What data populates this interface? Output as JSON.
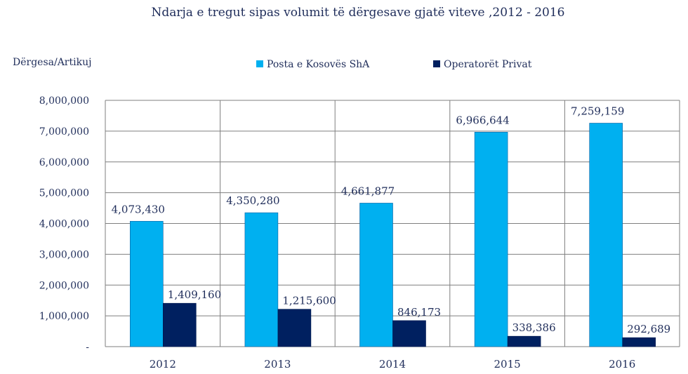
{
  "chart_data": {
    "type": "bar",
    "title": "Ndarja e tregut sipas volumit të dërgesave gjatë viteve ,2012 - 2016",
    "xlabel": "",
    "ylabel": "Dërgesa/Artikuj",
    "categories": [
      "2012",
      "2013",
      "2014",
      "2015",
      "2016"
    ],
    "series": [
      {
        "name": "Posta e Kosovës ShA",
        "color": "#00b0f0",
        "values": [
          4073430,
          4350280,
          4661877,
          6966644,
          7259159
        ],
        "labels": [
          "4,073,430",
          "4,350,280",
          "4,661,877",
          "6,966,644",
          "7,259,159"
        ]
      },
      {
        "name": "Operatorët Privat",
        "color": "#002060",
        "values": [
          1409160,
          1215600,
          846173,
          338386,
          292689
        ],
        "labels": [
          "1,409,160",
          "1,215,600",
          "846,173",
          "338,386",
          "292,689"
        ]
      }
    ],
    "ylim": [
      0,
      8000000
    ],
    "yticks": [
      0,
      1000000,
      2000000,
      3000000,
      4000000,
      5000000,
      6000000,
      7000000,
      8000000
    ],
    "ytick_labels": [
      "-",
      "1,000,000",
      "2,000,000",
      "3,000,000",
      "4,000,000",
      "5,000,000",
      "6,000,000",
      "7,000,000",
      "8,000,000"
    ],
    "grid": true,
    "legend_position": "top"
  }
}
